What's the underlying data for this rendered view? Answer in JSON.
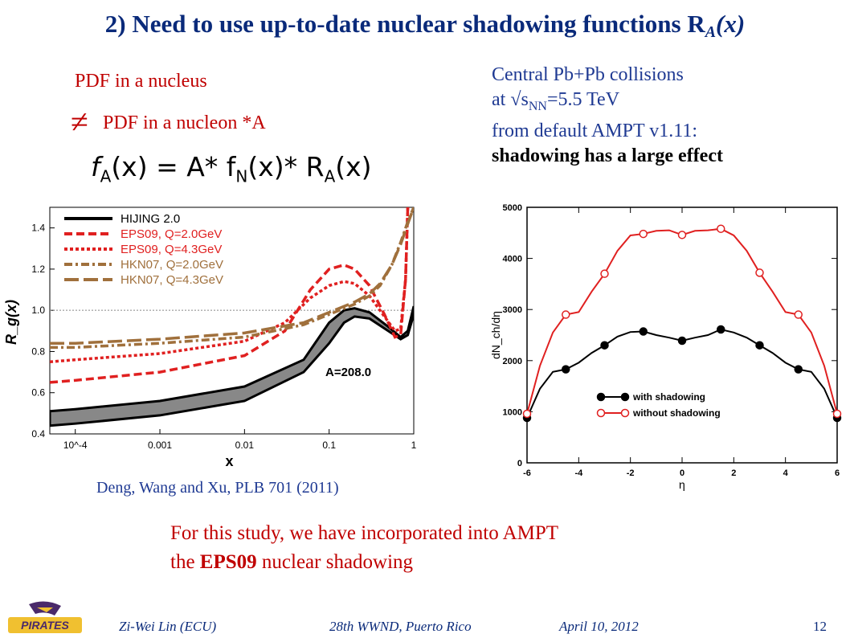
{
  "slide": {
    "title_main": "2) Need to use up-to-date nuclear shadowing functions R",
    "title_sub": "A",
    "title_tail": "(x)",
    "pdf_nucleus": "PDF in a nucleus",
    "neq_symbol": "≠",
    "pdf_nucleon": "PDF in a nucleon  *A",
    "formula": {
      "f": "f",
      "A": "A",
      "x": "(x)",
      "eq": "= A* f",
      "N": "N",
      "x2": "(x)* R",
      "A2": "A",
      "x3": "(x)"
    },
    "central_line1": "Central Pb+Pb collisions",
    "central_line2_pre": "at √s",
    "central_line2_sub": "NN",
    "central_line2_post": "=5.5 TeV",
    "central_line3": "from default AMPT v1.11:",
    "central_line4": "shadowing has a large effect",
    "citation": "Deng, Wang and Xu, PLB 701 (2011)",
    "study_line1": "For this study, we have incorporated into AMPT",
    "study_line2_pre": "the ",
    "study_line2_bold": "EPS09",
    "study_line2_post": " nuclear shadowing"
  },
  "footer": {
    "author": "Zi-Wei Lin (ECU)",
    "conference": "28th WWND, Puerto Rico",
    "date": "April 10, 2012",
    "page": "12",
    "logo_text": "PIRATES"
  },
  "chart_data": [
    {
      "type": "line",
      "ylabel": "R_g(x)",
      "xlabel": "x",
      "xscale": "log",
      "xlim": [
        5e-05,
        1
      ],
      "ylim": [
        0.4,
        1.5
      ],
      "xticks": [
        "10^-4",
        "0.001",
        "0.01",
        "0.1",
        "1"
      ],
      "yticks": [
        "0.4",
        "0.6",
        "0.8",
        "1.0",
        "1.2",
        "1.4"
      ],
      "annotation": "A=208.0",
      "series": [
        {
          "name": "HIJING 2.0",
          "color": "#000000",
          "style": "solid-band",
          "x": [
            5e-05,
            0.0001,
            0.001,
            0.01,
            0.05,
            0.1,
            0.15,
            0.2,
            0.3,
            0.5,
            0.7,
            0.85,
            1.0
          ],
          "lower": [
            0.44,
            0.45,
            0.49,
            0.56,
            0.7,
            0.84,
            0.94,
            0.97,
            0.96,
            0.9,
            0.86,
            0.88,
            0.98
          ],
          "upper": [
            0.51,
            0.52,
            0.56,
            0.63,
            0.76,
            0.94,
            1.0,
            1.01,
            0.99,
            0.92,
            0.87,
            0.9,
            1.02
          ]
        },
        {
          "name": "EPS09, Q=2.0GeV",
          "color": "#e02020",
          "style": "dashed",
          "x": [
            5e-05,
            0.0001,
            0.001,
            0.01,
            0.03,
            0.06,
            0.1,
            0.15,
            0.2,
            0.3,
            0.45,
            0.6,
            0.7,
            0.8,
            0.85
          ],
          "y": [
            0.65,
            0.66,
            0.7,
            0.78,
            0.9,
            1.1,
            1.2,
            1.22,
            1.2,
            1.12,
            0.98,
            0.87,
            0.88,
            1.15,
            1.5
          ]
        },
        {
          "name": "EPS09, Q=4.3GeV",
          "color": "#e02020",
          "style": "dotted",
          "x": [
            5e-05,
            0.0001,
            0.001,
            0.01,
            0.03,
            0.06,
            0.1,
            0.15,
            0.2,
            0.3,
            0.45,
            0.6,
            0.7,
            0.8,
            0.85
          ],
          "y": [
            0.75,
            0.76,
            0.79,
            0.85,
            0.94,
            1.06,
            1.12,
            1.14,
            1.13,
            1.07,
            0.97,
            0.9,
            0.91,
            1.15,
            1.5
          ]
        },
        {
          "name": "HKN07, Q=2.0GeV",
          "color": "#a0703c",
          "style": "dashdot",
          "x": [
            5e-05,
            0.0001,
            0.001,
            0.01,
            0.05,
            0.1,
            0.2,
            0.3,
            0.4,
            0.55,
            0.7,
            0.85,
            1.0
          ],
          "y": [
            0.82,
            0.82,
            0.84,
            0.87,
            0.93,
            0.98,
            1.03,
            1.07,
            1.12,
            1.22,
            1.33,
            1.43,
            1.5
          ]
        },
        {
          "name": "HKN07, Q=4.3GeV",
          "color": "#a0703c",
          "style": "longdash",
          "x": [
            5e-05,
            0.0001,
            0.001,
            0.01,
            0.05,
            0.1,
            0.2,
            0.3,
            0.4,
            0.55,
            0.7,
            0.85,
            1.0
          ],
          "y": [
            0.84,
            0.84,
            0.86,
            0.89,
            0.94,
            0.99,
            1.04,
            1.08,
            1.13,
            1.22,
            1.32,
            1.42,
            1.5
          ]
        }
      ]
    },
    {
      "type": "line",
      "ylabel": "dN_ch/dη",
      "xlabel": "η",
      "xlim": [
        -6,
        6
      ],
      "ylim": [
        0,
        5000
      ],
      "xticks": [
        "-6",
        "-4",
        "-2",
        "0",
        "2",
        "4",
        "6"
      ],
      "yticks": [
        "0",
        "1000",
        "2000",
        "3000",
        "4000",
        "5000"
      ],
      "legend_position": "lower-center",
      "series": [
        {
          "name": "with shadowing",
          "color": "#000000",
          "marker": "filled-circle",
          "x": [
            -6,
            -5.5,
            -5,
            -4.5,
            -4,
            -3.5,
            -3,
            -2.5,
            -2,
            -1.5,
            -1,
            -0.5,
            0,
            0.5,
            1,
            1.5,
            2,
            2.5,
            3,
            3.5,
            4,
            4.5,
            5,
            5.5,
            6
          ],
          "y": [
            880,
            1450,
            1780,
            1830,
            1960,
            2150,
            2300,
            2470,
            2560,
            2570,
            2500,
            2450,
            2390,
            2450,
            2500,
            2610,
            2550,
            2450,
            2300,
            2150,
            1960,
            1830,
            1780,
            1450,
            880
          ],
          "marker_x": [
            -6,
            -4.5,
            -3,
            -1.5,
            0,
            1.5,
            3,
            4.5,
            6
          ]
        },
        {
          "name": "without shadowing",
          "color": "#e02020",
          "marker": "open-circle",
          "x": [
            -6,
            -5.5,
            -5,
            -4.5,
            -4,
            -3.5,
            -3,
            -2.5,
            -2,
            -1.5,
            -1,
            -0.5,
            0,
            0.5,
            1,
            1.5,
            2,
            2.5,
            3,
            3.5,
            4,
            4.5,
            5,
            5.5,
            6
          ],
          "y": [
            960,
            1900,
            2550,
            2900,
            2950,
            3350,
            3700,
            4150,
            4450,
            4480,
            4540,
            4550,
            4460,
            4540,
            4550,
            4580,
            4450,
            4150,
            3720,
            3350,
            2950,
            2900,
            2550,
            1900,
            960
          ],
          "marker_x": [
            -6,
            -4.5,
            -3,
            -1.5,
            0,
            1.5,
            3,
            4.5,
            6
          ]
        }
      ]
    }
  ]
}
